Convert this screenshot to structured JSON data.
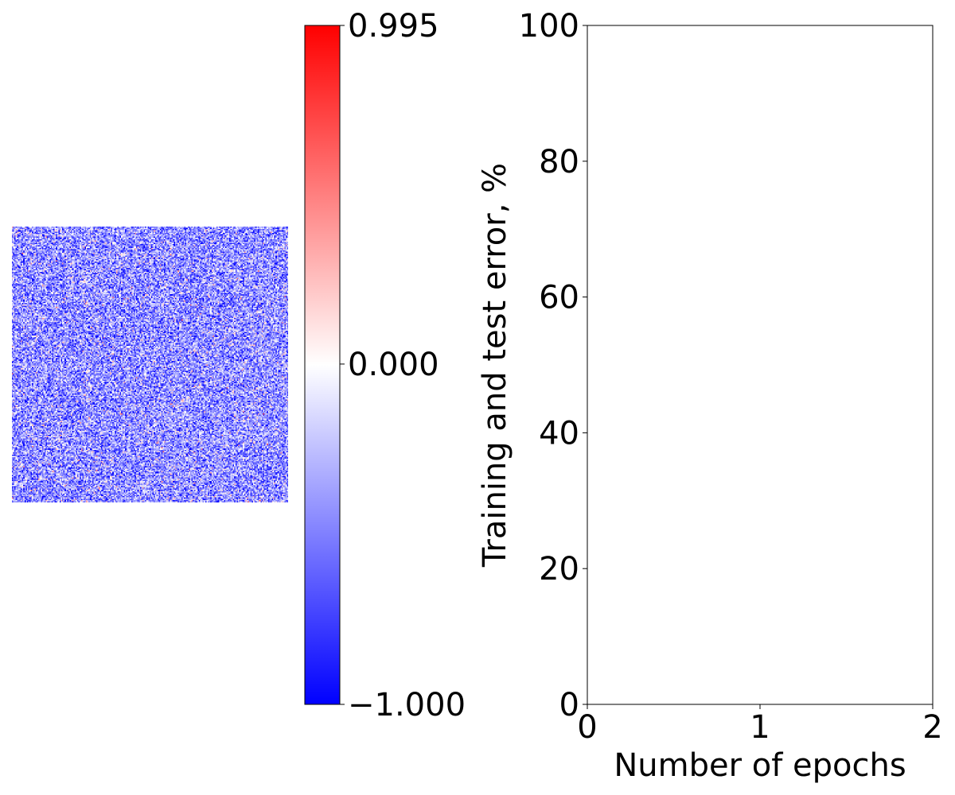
{
  "chart_data": [
    {
      "type": "heatmap",
      "description_role": "weight-matrix",
      "grid_size": 220,
      "value_range": [
        -1.0,
        0.995
      ],
      "value_distribution": "mostly negative / near-zero noise",
      "colormap": {
        "name": "bwr",
        "low_color": "#0000ff",
        "mid_color": "#ffffff",
        "high_color": "#ff0000"
      },
      "colorbar": {
        "ticks": [
          {
            "value": 0.995,
            "label": "0.995"
          },
          {
            "value": 0.0,
            "label": "0.000"
          },
          {
            "value": -1.0,
            "label": "−1.000"
          }
        ]
      },
      "axes_visible": false
    },
    {
      "type": "line",
      "title": "",
      "xlabel": "Number of epochs",
      "ylabel": "Training and test error, %",
      "xlim": [
        0,
        2
      ],
      "ylim": [
        0,
        100
      ],
      "xticks": [
        {
          "value": 0,
          "label": "0"
        },
        {
          "value": 1,
          "label": "1"
        },
        {
          "value": 2,
          "label": "2"
        }
      ],
      "yticks": [
        {
          "value": 0,
          "label": "0"
        },
        {
          "value": 20,
          "label": "20"
        },
        {
          "value": 40,
          "label": "40"
        },
        {
          "value": 60,
          "label": "60"
        },
        {
          "value": 80,
          "label": "80"
        },
        {
          "value": 100,
          "label": "100"
        }
      ],
      "series": [],
      "grid": false,
      "legend": "none"
    }
  ]
}
